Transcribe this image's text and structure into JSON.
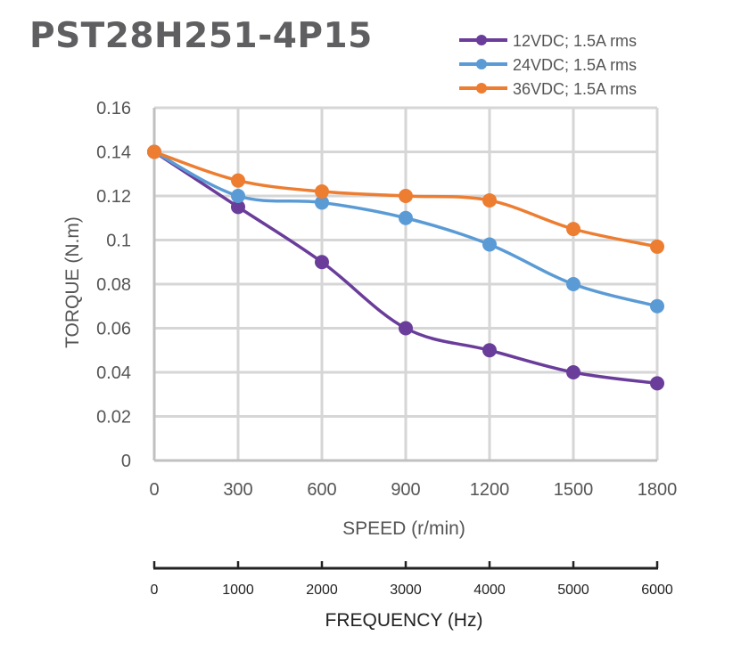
{
  "title": "PST28H251-4P15",
  "chart_data": {
    "type": "line",
    "title": "PST28H251-4P15",
    "xlabel": "SPEED (r/min)",
    "ylabel": "TORQUE (N.m)",
    "x": [
      0,
      300,
      600,
      900,
      1200,
      1500,
      1800
    ],
    "x_tick_labels": [
      "0",
      "300",
      "600",
      "900",
      "1200",
      "1500",
      "1800"
    ],
    "xlim": [
      0,
      1800
    ],
    "y_tick_labels": [
      "0",
      "0.02",
      "0.04",
      "0.06",
      "0.08",
      "0.1",
      "0.12",
      "0.14",
      "0.16"
    ],
    "y_ticks": [
      0,
      0.02,
      0.04,
      0.06,
      0.08,
      0.1,
      0.12,
      0.14,
      0.16
    ],
    "ylim": [
      0,
      0.16
    ],
    "grid": true,
    "legend_position": "top-right",
    "series": [
      {
        "name": "12VDC; 1.5A rms",
        "color": "#6a3d9a",
        "values": [
          0.14,
          0.115,
          0.09,
          0.06,
          0.05,
          0.04,
          0.035
        ]
      },
      {
        "name": "24VDC; 1.5A rms",
        "color": "#5b9bd5",
        "values": [
          0.14,
          0.12,
          0.117,
          0.11,
          0.098,
          0.08,
          0.07
        ]
      },
      {
        "name": "36VDC; 1.5A rms",
        "color": "#ed7d31",
        "values": [
          0.14,
          0.127,
          0.122,
          0.12,
          0.118,
          0.105,
          0.097
        ]
      }
    ],
    "secondary_axis": {
      "label": "FREQUENCY (Hz)",
      "ticks": [
        0,
        1000,
        2000,
        3000,
        4000,
        5000,
        6000
      ],
      "tick_labels": [
        "0",
        "1000",
        "2000",
        "3000",
        "4000",
        "5000",
        "6000"
      ]
    }
  }
}
